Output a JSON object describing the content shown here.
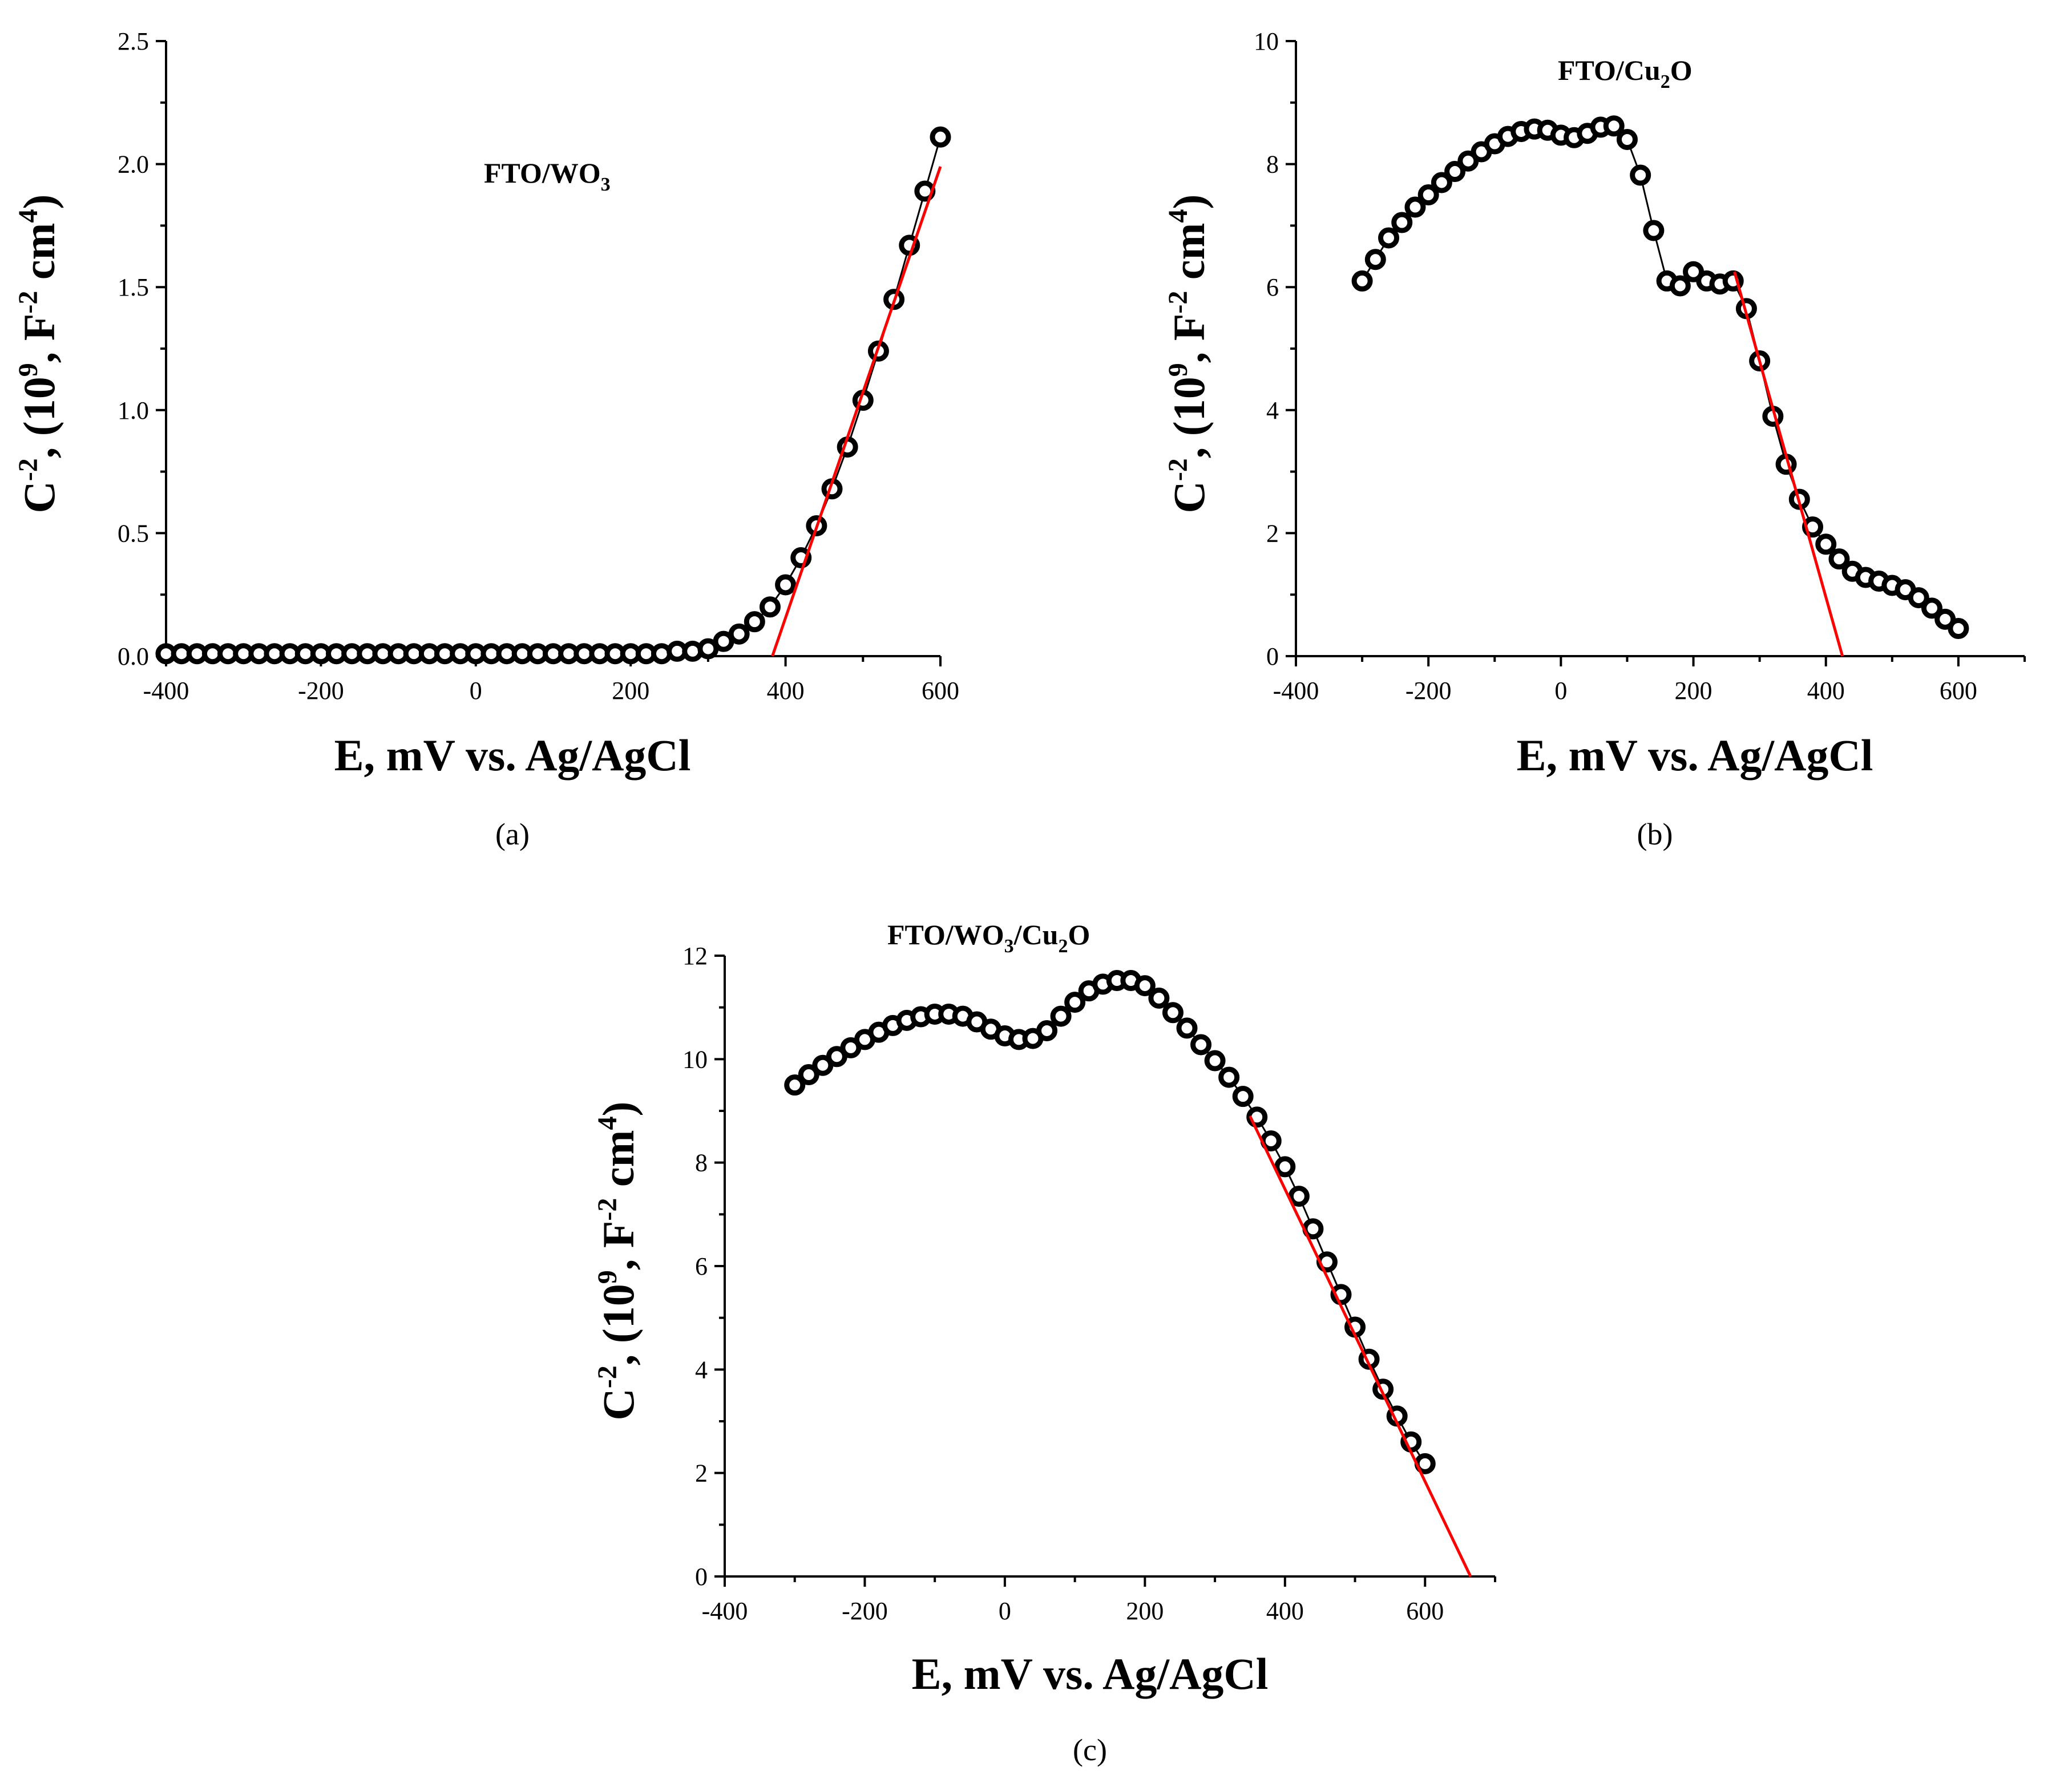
{
  "chart_data": [
    {
      "id": "a",
      "type": "scatter",
      "title_parts": [
        "FTO/WO",
        "3"
      ],
      "caption": "(a)",
      "xlabel": "E, mV vs. Ag/AgCl",
      "ylabel": {
        "pre": "C",
        "sup1": "-2",
        "mid1": ", (10",
        "sup2": "9",
        "mid2": ", F",
        "sup3": "-2",
        "mid3": " cm",
        "sup4": "4",
        "post": ")"
      },
      "xlim": [
        -400,
        600
      ],
      "ylim": [
        0,
        2.5
      ],
      "xticks": [
        "-400",
        "-200",
        "0",
        "200",
        "400",
        "600"
      ],
      "yticks": [
        "0.0",
        "0.5",
        "1.0",
        "1.5",
        "2.0",
        "2.5"
      ],
      "x": [
        -400,
        -380,
        -360,
        -340,
        -320,
        -300,
        -280,
        -260,
        -240,
        -220,
        -200,
        -180,
        -160,
        -140,
        -120,
        -100,
        -80,
        -60,
        -40,
        -20,
        0,
        20,
        40,
        60,
        80,
        100,
        120,
        140,
        160,
        180,
        200,
        220,
        240,
        260,
        280,
        300,
        320,
        340,
        360,
        380,
        400,
        420,
        440,
        460,
        480,
        500,
        520,
        540,
        560,
        580,
        600
      ],
      "y": [
        0.01,
        0.01,
        0.01,
        0.01,
        0.01,
        0.01,
        0.01,
        0.01,
        0.01,
        0.01,
        0.01,
        0.01,
        0.01,
        0.01,
        0.01,
        0.01,
        0.01,
        0.01,
        0.01,
        0.01,
        0.01,
        0.01,
        0.01,
        0.01,
        0.01,
        0.01,
        0.01,
        0.01,
        0.01,
        0.01,
        0.01,
        0.01,
        0.01,
        0.02,
        0.02,
        0.03,
        0.06,
        0.09,
        0.14,
        0.2,
        0.29,
        0.4,
        0.53,
        0.68,
        0.85,
        1.04,
        1.24,
        1.45,
        1.67,
        1.89,
        2.11
      ],
      "fit": {
        "x": [
          383,
          600
        ],
        "y": [
          0,
          1.99
        ]
      }
    },
    {
      "id": "b",
      "type": "scatter",
      "title_parts": [
        "FTO/Cu",
        "2",
        "O"
      ],
      "caption": "(b)",
      "xlabel": "E, mV vs. Ag/AgCl",
      "ylabel": {
        "pre": "C",
        "sup1": "-2",
        "mid1": ", (10",
        "sup2": "9",
        "mid2": ", F",
        "sup3": "-2",
        "mid3": " cm",
        "sup4": "4",
        "post": ")"
      },
      "xlim": [
        -400,
        700
      ],
      "ylim": [
        0,
        10
      ],
      "xticks": [
        "-400",
        "-200",
        "0",
        "200",
        "400",
        "600"
      ],
      "yticks": [
        "0",
        "2",
        "4",
        "6",
        "8",
        "10"
      ],
      "x": [
        -300,
        -280,
        -260,
        -240,
        -220,
        -200,
        -180,
        -160,
        -140,
        -120,
        -100,
        -80,
        -60,
        -40,
        -20,
        0,
        20,
        40,
        60,
        80,
        100,
        120,
        140,
        160,
        180,
        200,
        220,
        240,
        260,
        280,
        300,
        320,
        340,
        360,
        380,
        400,
        420,
        440,
        460,
        480,
        500,
        520,
        540,
        560,
        580,
        600
      ],
      "y": [
        6.1,
        6.45,
        6.8,
        7.05,
        7.3,
        7.5,
        7.7,
        7.88,
        8.05,
        8.2,
        8.33,
        8.45,
        8.53,
        8.57,
        8.55,
        8.47,
        8.43,
        8.5,
        8.6,
        8.62,
        8.4,
        7.82,
        6.92,
        6.1,
        6.02,
        6.25,
        6.1,
        6.05,
        6.1,
        5.65,
        4.8,
        3.9,
        3.12,
        2.55,
        2.1,
        1.82,
        1.58,
        1.38,
        1.28,
        1.22,
        1.15,
        1.08,
        0.95,
        0.78,
        0.6,
        0.45
      ],
      "fit": {
        "x": [
          262,
          425
        ],
        "y": [
          6.25,
          0
        ]
      }
    },
    {
      "id": "c",
      "type": "scatter",
      "title_parts": [
        "FTO/WO",
        "3",
        "/Cu",
        "2",
        "O"
      ],
      "caption": "(c)",
      "xlabel": "E, mV vs. Ag/AgCl",
      "ylabel": {
        "pre": "C",
        "sup1": "-2",
        "mid1": ", (10",
        "sup2": "9",
        "mid2": ", F",
        "sup3": "-2",
        "mid3": " cm",
        "sup4": "4",
        "post": ")"
      },
      "xlim": [
        -400,
        700
      ],
      "ylim": [
        0,
        12
      ],
      "xticks": [
        "-400",
        "-200",
        "0",
        "200",
        "400",
        "600"
      ],
      "yticks": [
        "0",
        "2",
        "4",
        "6",
        "8",
        "10",
        "12"
      ],
      "x": [
        -300,
        -280,
        -260,
        -240,
        -220,
        -200,
        -180,
        -160,
        -140,
        -120,
        -100,
        -80,
        -60,
        -40,
        -20,
        0,
        20,
        40,
        60,
        80,
        100,
        120,
        140,
        160,
        180,
        200,
        220,
        240,
        260,
        280,
        300,
        320,
        340,
        360,
        380,
        400,
        420,
        440,
        460,
        480,
        500,
        520,
        540,
        560,
        580,
        600
      ],
      "y": [
        9.5,
        9.7,
        9.88,
        10.05,
        10.22,
        10.38,
        10.52,
        10.65,
        10.75,
        10.82,
        10.87,
        10.87,
        10.83,
        10.72,
        10.58,
        10.45,
        10.38,
        10.4,
        10.55,
        10.83,
        11.1,
        11.32,
        11.45,
        11.52,
        11.52,
        11.42,
        11.18,
        10.9,
        10.6,
        10.28,
        9.97,
        9.65,
        9.28,
        8.88,
        8.42,
        7.92,
        7.35,
        6.72,
        6.08,
        5.45,
        4.82,
        4.2,
        3.62,
        3.1,
        2.6,
        2.18
      ],
      "fit": {
        "x": [
          350,
          665
        ],
        "y": [
          8.9,
          0
        ]
      }
    }
  ]
}
